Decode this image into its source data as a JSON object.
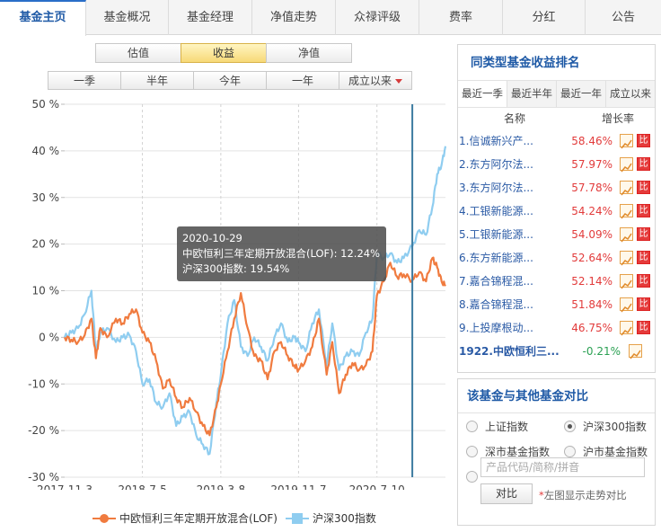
{
  "nav": {
    "tabs": [
      {
        "label": "基金主页",
        "active": true
      },
      {
        "label": "基金概况",
        "active": false
      },
      {
        "label": "基金经理",
        "active": false
      },
      {
        "label": "净值走势",
        "active": false
      },
      {
        "label": "众禄评级",
        "active": false
      },
      {
        "label": "费率",
        "active": false
      },
      {
        "label": "分红",
        "active": false
      },
      {
        "label": "公告",
        "active": false
      }
    ]
  },
  "view_toggle": {
    "options": [
      "估值",
      "收益",
      "净值"
    ],
    "selected": "收益"
  },
  "period_toggle": {
    "options": [
      "一季",
      "半年",
      "今年",
      "一年",
      "成立以来"
    ],
    "selected": "成立以来"
  },
  "tooltip": {
    "date": "2020-10-29",
    "fund_line": "中欧恒利三年定期开放混合(LOF): 12.24%",
    "index_line": "沪深300指数: 19.54%"
  },
  "legend": {
    "fund": "中欧恒利三年定期开放混合(LOF)",
    "index": "沪深300指数"
  },
  "colors": {
    "fund": "#f07b3f",
    "index": "#8fcdf0",
    "accent": "#1f5aa6",
    "up": "#e23b3b",
    "down": "#2aa052"
  },
  "chart_data": {
    "type": "line",
    "y_tick_labels": [
      "50 %",
      "40 %",
      "30 %",
      "20 %",
      "10 %",
      "0 %",
      "-10 %",
      "-20 %",
      "-30 %"
    ],
    "x_tick_labels": [
      "2017-11-3",
      "2018-7-5",
      "2019-3-8",
      "2019-11-7",
      "2020-7-10"
    ],
    "ylim": [
      -30,
      50
    ],
    "x_range": [
      "2017-11-03",
      "2021-02-10"
    ],
    "x_ticks": [
      "2017-11-03",
      "2018-07-05",
      "2019-03-08",
      "2019-11-07",
      "2020-07-10"
    ],
    "hover_date": "2020-10-29",
    "grid": true,
    "legend_position": "bottom",
    "series": [
      {
        "name": "中欧恒利三年定期开放混合(LOF)",
        "color": "#f07b3f",
        "points": [
          [
            "2017-11-03",
            0.0
          ],
          [
            "2017-11-24",
            -0.5
          ],
          [
            "2017-12-15",
            -1.0
          ],
          [
            "2018-01-05",
            0.5
          ],
          [
            "2018-01-26",
            4.0
          ],
          [
            "2018-02-09",
            -4.5
          ],
          [
            "2018-02-23",
            2.0
          ],
          [
            "2018-03-16",
            0.0
          ],
          [
            "2018-04-13",
            4.0
          ],
          [
            "2018-05-04",
            3.0
          ],
          [
            "2018-05-25",
            5.0
          ],
          [
            "2018-06-15",
            6.0
          ],
          [
            "2018-07-05",
            1.0
          ],
          [
            "2018-07-27",
            -1.0
          ],
          [
            "2018-08-17",
            -5.0
          ],
          [
            "2018-09-07",
            -11.0
          ],
          [
            "2018-09-28",
            -9.0
          ],
          [
            "2018-10-19",
            -13.0
          ],
          [
            "2018-11-09",
            -15.0
          ],
          [
            "2018-11-30",
            -13.0
          ],
          [
            "2018-12-21",
            -16.0
          ],
          [
            "2019-01-11",
            -19.0
          ],
          [
            "2019-02-01",
            -21.0
          ],
          [
            "2019-02-22",
            -15.0
          ],
          [
            "2019-03-08",
            -10.0
          ],
          [
            "2019-03-29",
            -3.0
          ],
          [
            "2019-04-19",
            4.0
          ],
          [
            "2019-05-10",
            9.5
          ],
          [
            "2019-05-31",
            2.0
          ],
          [
            "2019-06-21",
            -4.0
          ],
          [
            "2019-07-12",
            -5.0
          ],
          [
            "2019-08-02",
            -9.0
          ],
          [
            "2019-08-23",
            -3.0
          ],
          [
            "2019-09-13",
            -1.0
          ],
          [
            "2019-10-04",
            -4.0
          ],
          [
            "2019-10-25",
            -6.0
          ],
          [
            "2019-11-07",
            -7.0
          ],
          [
            "2019-11-29",
            -5.0
          ],
          [
            "2019-12-20",
            -2.0
          ],
          [
            "2020-01-10",
            4.0
          ],
          [
            "2020-02-03",
            -8.0
          ],
          [
            "2020-02-21",
            -1.0
          ],
          [
            "2020-03-13",
            -12.0
          ],
          [
            "2020-04-03",
            -8.0
          ],
          [
            "2020-04-24",
            -5.5
          ],
          [
            "2020-05-15",
            -7.0
          ],
          [
            "2020-06-05",
            -6.0
          ],
          [
            "2020-06-26",
            -3.0
          ],
          [
            "2020-07-10",
            9.0
          ],
          [
            "2020-07-31",
            12.0
          ],
          [
            "2020-08-21",
            16.0
          ],
          [
            "2020-09-11",
            13.0
          ],
          [
            "2020-10-02",
            13.5
          ],
          [
            "2020-10-29",
            12.24
          ],
          [
            "2020-11-20",
            14.0
          ],
          [
            "2020-12-11",
            12.0
          ],
          [
            "2020-12-31",
            17.0
          ],
          [
            "2021-01-15",
            15.0
          ],
          [
            "2021-01-29",
            12.0
          ],
          [
            "2021-02-10",
            11.0
          ]
        ]
      },
      {
        "name": "沪深300指数",
        "color": "#8fcdf0",
        "points": [
          [
            "2017-11-03",
            0.0
          ],
          [
            "2017-11-24",
            1.0
          ],
          [
            "2017-12-15",
            2.0
          ],
          [
            "2018-01-05",
            5.0
          ],
          [
            "2018-01-26",
            10.0
          ],
          [
            "2018-02-09",
            -3.0
          ],
          [
            "2018-02-23",
            1.0
          ],
          [
            "2018-03-16",
            2.0
          ],
          [
            "2018-04-13",
            -1.0
          ],
          [
            "2018-05-04",
            0.0
          ],
          [
            "2018-05-25",
            0.5
          ],
          [
            "2018-06-15",
            -3.0
          ],
          [
            "2018-07-05",
            -10.0
          ],
          [
            "2018-07-27",
            -9.0
          ],
          [
            "2018-08-17",
            -14.0
          ],
          [
            "2018-09-07",
            -15.0
          ],
          [
            "2018-09-28",
            -12.0
          ],
          [
            "2018-10-19",
            -19.0
          ],
          [
            "2018-11-09",
            -17.0
          ],
          [
            "2018-11-30",
            -16.0
          ],
          [
            "2018-12-21",
            -21.0
          ],
          [
            "2019-01-11",
            -23.0
          ],
          [
            "2019-02-01",
            -25.0
          ],
          [
            "2019-02-22",
            -14.0
          ],
          [
            "2019-03-08",
            -8.0
          ],
          [
            "2019-03-29",
            3.0
          ],
          [
            "2019-04-19",
            8.0
          ],
          [
            "2019-05-10",
            -2.0
          ],
          [
            "2019-05-31",
            -4.0
          ],
          [
            "2019-06-21",
            0.0
          ],
          [
            "2019-07-12",
            -2.0
          ],
          [
            "2019-08-02",
            -5.0
          ],
          [
            "2019-08-23",
            0.0
          ],
          [
            "2019-09-13",
            3.0
          ],
          [
            "2019-10-04",
            -1.0
          ],
          [
            "2019-10-25",
            0.0
          ],
          [
            "2019-11-07",
            -1.0
          ],
          [
            "2019-11-29",
            -3.0
          ],
          [
            "2019-12-20",
            3.0
          ],
          [
            "2020-01-10",
            6.0
          ],
          [
            "2020-02-03",
            -6.0
          ],
          [
            "2020-02-21",
            3.0
          ],
          [
            "2020-03-13",
            -7.0
          ],
          [
            "2020-04-03",
            -4.0
          ],
          [
            "2020-04-24",
            -3.0
          ],
          [
            "2020-05-15",
            -4.0
          ],
          [
            "2020-06-05",
            1.0
          ],
          [
            "2020-06-26",
            4.0
          ],
          [
            "2020-07-10",
            18.0
          ],
          [
            "2020-07-31",
            17.0
          ],
          [
            "2020-08-21",
            18.0
          ],
          [
            "2020-09-11",
            16.0
          ],
          [
            "2020-10-02",
            17.0
          ],
          [
            "2020-10-29",
            19.54
          ],
          [
            "2020-11-20",
            23.0
          ],
          [
            "2020-12-11",
            22.0
          ],
          [
            "2020-12-31",
            28.0
          ],
          [
            "2021-01-15",
            35.0
          ],
          [
            "2021-01-29",
            37.0
          ],
          [
            "2021-02-10",
            41.0
          ]
        ]
      }
    ]
  },
  "ranking": {
    "title": "同类型基金收益排名",
    "tabs": [
      {
        "label": "最近一季",
        "active": true
      },
      {
        "label": "最近半年",
        "active": false
      },
      {
        "label": "最近一年",
        "active": false
      },
      {
        "label": "成立以来",
        "active": false
      }
    ],
    "col_name": "名称",
    "col_growth": "增长率",
    "compare_icon_text": "比",
    "rows": [
      {
        "name": "1.信诚新兴产...",
        "value": "58.46%"
      },
      {
        "name": "2.东方阿尔法...",
        "value": "57.97%"
      },
      {
        "name": "3.东方阿尔法...",
        "value": "57.78%"
      },
      {
        "name": "4.工银新能源...",
        "value": "54.24%"
      },
      {
        "name": "5.工银新能源...",
        "value": "54.09%"
      },
      {
        "name": "6.东方新能源...",
        "value": "52.64%"
      },
      {
        "name": "7.嘉合锦程混...",
        "value": "52.14%"
      },
      {
        "name": "8.嘉合锦程混...",
        "value": "51.84%"
      },
      {
        "name": "9.上投摩根动...",
        "value": "46.75%"
      }
    ],
    "current": {
      "name": "1922.中欧恒利三...",
      "value": "-0.21%"
    }
  },
  "compare": {
    "title": "该基金与其他基金对比",
    "options": [
      {
        "label": "上证指数",
        "checked": false
      },
      {
        "label": "沪深300指数",
        "checked": true
      },
      {
        "label": "深市基金指数",
        "checked": false
      },
      {
        "label": "沪市基金指数",
        "checked": false
      }
    ],
    "input_placeholder": "产品代码/简称/拼音",
    "button_label": "对比",
    "note_star": "*",
    "note": "左图显示走势对比"
  }
}
